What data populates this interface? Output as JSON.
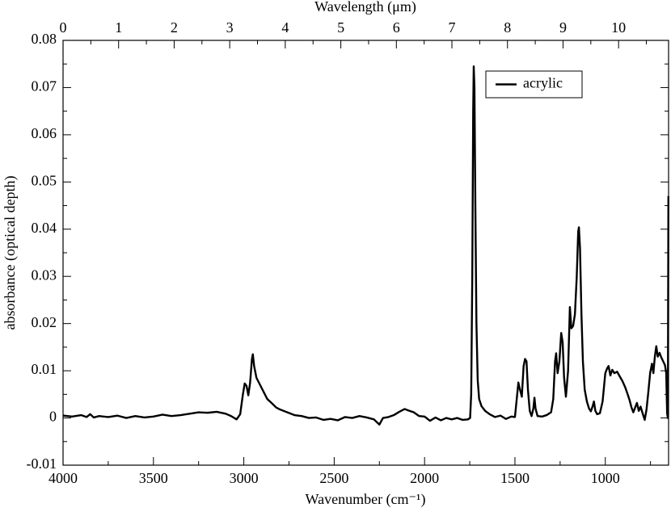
{
  "chart_data": {
    "type": "line",
    "xlabel": "Wavenumber (cm⁻¹)",
    "ylabel": "absorbance (optical depth)",
    "x2label": "Wavelength (μm)",
    "xlim": [
      4000,
      650
    ],
    "xticks": [
      4000,
      3500,
      3000,
      2500,
      2000,
      1500,
      1000
    ],
    "x2lim": [
      0,
      10.9
    ],
    "x2ticks": [
      0,
      1,
      2,
      3,
      4,
      5,
      6,
      7,
      8,
      9,
      10
    ],
    "ylim": [
      -0.01,
      0.08
    ],
    "yticks": [
      -0.01,
      0,
      0.01,
      0.02,
      0.03,
      0.04,
      0.05,
      0.06,
      0.07,
      0.08
    ],
    "legend": "upper right",
    "series": [
      {
        "name": "acrylic",
        "color": "#000000",
        "x": [
          4000,
          3950,
          3900,
          3870,
          3850,
          3830,
          3800,
          3750,
          3700,
          3650,
          3600,
          3550,
          3500,
          3450,
          3400,
          3350,
          3300,
          3250,
          3200,
          3150,
          3100,
          3070,
          3040,
          3020,
          3005,
          2995,
          2985,
          2975,
          2965,
          2955,
          2950,
          2943,
          2930,
          2910,
          2890,
          2870,
          2850,
          2820,
          2800,
          2760,
          2720,
          2680,
          2640,
          2600,
          2560,
          2520,
          2480,
          2440,
          2400,
          2360,
          2320,
          2280,
          2250,
          2230,
          2200,
          2170,
          2140,
          2110,
          2090,
          2060,
          2030,
          2000,
          1970,
          1940,
          1910,
          1880,
          1850,
          1820,
          1790,
          1760,
          1748,
          1742,
          1736,
          1731,
          1728,
          1724,
          1719,
          1713,
          1706,
          1698,
          1685,
          1665,
          1640,
          1610,
          1580,
          1550,
          1520,
          1500,
          1490,
          1481,
          1472,
          1462,
          1452,
          1444,
          1436,
          1428,
          1418,
          1408,
          1398,
          1392,
          1386,
          1375,
          1350,
          1325,
          1300,
          1288,
          1278,
          1272,
          1264,
          1254,
          1244,
          1236,
          1228,
          1218,
          1206,
          1196,
          1188,
          1178,
          1168,
          1158,
          1150,
          1146,
          1140,
          1132,
          1124,
          1114,
          1102,
          1090,
          1080,
          1070,
          1063,
          1055,
          1045,
          1030,
          1015,
          1000,
          990,
          982,
          972,
          962,
          950,
          935,
          920,
          905,
          890,
          878,
          866,
          855,
          845,
          835,
          825,
          815,
          805,
          792,
          782,
          772,
          762,
          752,
          742,
          734,
          726,
          718,
          710,
          700,
          690,
          680,
          670,
          663,
          658,
          654,
          651
        ],
        "values": [
          0.0005,
          0.0003,
          0.0006,
          0.0002,
          0.0008,
          0.0001,
          0.0004,
          0.0002,
          0.0005,
          0.0,
          0.0004,
          0.0001,
          0.0003,
          0.0007,
          0.0004,
          0.0006,
          0.0009,
          0.0012,
          0.0011,
          0.0013,
          0.0009,
          0.0004,
          -0.0003,
          0.0008,
          0.005,
          0.0073,
          0.0068,
          0.0048,
          0.0075,
          0.0125,
          0.0135,
          0.011,
          0.0085,
          0.007,
          0.0055,
          0.004,
          0.0033,
          0.0022,
          0.0018,
          0.0012,
          0.0006,
          0.0004,
          0.0,
          0.0001,
          -0.0004,
          -0.0002,
          -0.0005,
          0.0002,
          0.0,
          0.0004,
          0.0001,
          -0.0003,
          -0.0014,
          0.0,
          0.0002,
          0.0006,
          0.0013,
          0.0019,
          0.0016,
          0.0012,
          0.0004,
          0.0003,
          -0.0006,
          0.0001,
          -0.0005,
          0.0,
          -0.0003,
          0.0,
          -0.0004,
          -0.0003,
          0.0,
          0.005,
          0.03,
          0.065,
          0.0745,
          0.07,
          0.045,
          0.02,
          0.008,
          0.004,
          0.0025,
          0.0015,
          0.0008,
          0.0002,
          0.0005,
          -0.0002,
          0.0003,
          0.0002,
          0.004,
          0.0075,
          0.006,
          0.0045,
          0.011,
          0.0125,
          0.012,
          0.006,
          0.0015,
          0.0004,
          0.002,
          0.0043,
          0.002,
          0.0004,
          0.0003,
          0.0006,
          0.0012,
          0.004,
          0.012,
          0.0137,
          0.0095,
          0.012,
          0.018,
          0.016,
          0.0085,
          0.0045,
          0.01,
          0.0235,
          0.019,
          0.0195,
          0.022,
          0.03,
          0.0395,
          0.0404,
          0.036,
          0.022,
          0.012,
          0.006,
          0.0035,
          0.002,
          0.0014,
          0.0025,
          0.0035,
          0.0015,
          0.0008,
          0.001,
          0.0035,
          0.0095,
          0.0105,
          0.011,
          0.009,
          0.0102,
          0.0095,
          0.0098,
          0.0088,
          0.0078,
          0.0065,
          0.0052,
          0.0038,
          0.0022,
          0.0012,
          0.0022,
          0.0032,
          0.0015,
          0.0024,
          0.0008,
          -0.0004,
          0.0018,
          0.0055,
          0.0095,
          0.0115,
          0.0095,
          0.013,
          0.0152,
          0.013,
          0.0138,
          0.0128,
          0.012,
          0.0112,
          0.0095,
          0.001,
          0.0,
          0.047
        ]
      }
    ]
  }
}
